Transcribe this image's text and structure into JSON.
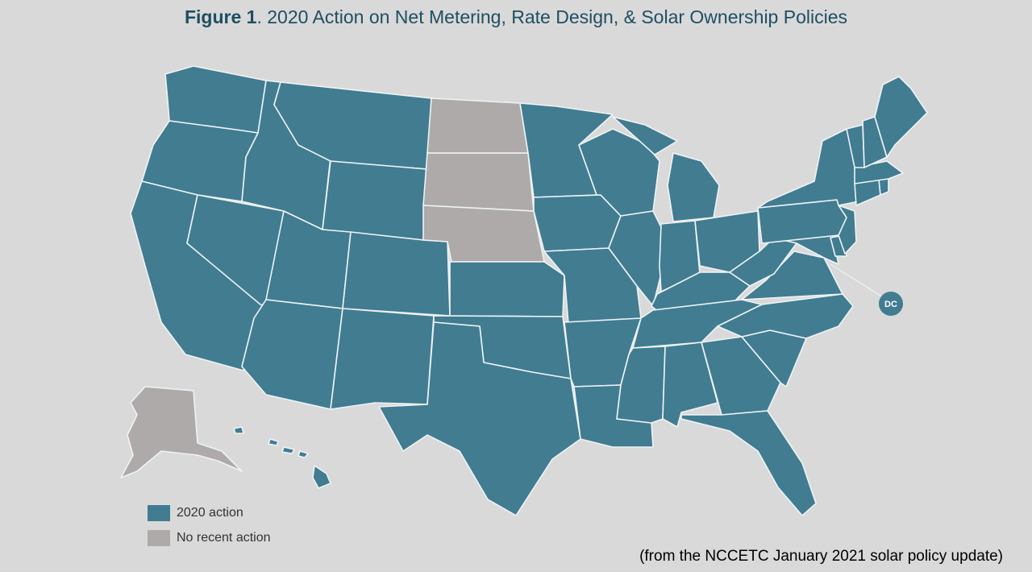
{
  "title": {
    "bold_part": "Figure 1",
    "rest": ". 2020 Action on Net Metering, Rate Design, & Solar Ownership Policies"
  },
  "colors": {
    "action_2020": "#417c91",
    "no_recent_action": "#aeaaa9",
    "background": "#d9d9d9",
    "border": "#eef3f5"
  },
  "legend": {
    "items": [
      {
        "label": "2020 action",
        "status": "action_2020"
      },
      {
        "label": "No recent action",
        "status": "no_recent_action"
      }
    ]
  },
  "dc": {
    "label": "DC",
    "status": "action_2020"
  },
  "source_note": "(from the NCCETC January 2021 solar policy update)",
  "map": {
    "states": [
      {
        "abbr": "WA",
        "status": "action_2020"
      },
      {
        "abbr": "OR",
        "status": "action_2020"
      },
      {
        "abbr": "CA",
        "status": "action_2020"
      },
      {
        "abbr": "ID",
        "status": "action_2020"
      },
      {
        "abbr": "NV",
        "status": "action_2020"
      },
      {
        "abbr": "MT",
        "status": "action_2020"
      },
      {
        "abbr": "WY",
        "status": "action_2020"
      },
      {
        "abbr": "UT",
        "status": "action_2020"
      },
      {
        "abbr": "AZ",
        "status": "action_2020"
      },
      {
        "abbr": "CO",
        "status": "action_2020"
      },
      {
        "abbr": "NM",
        "status": "action_2020"
      },
      {
        "abbr": "ND",
        "status": "no_recent_action"
      },
      {
        "abbr": "SD",
        "status": "no_recent_action"
      },
      {
        "abbr": "NE",
        "status": "no_recent_action"
      },
      {
        "abbr": "KS",
        "status": "action_2020"
      },
      {
        "abbr": "OK",
        "status": "action_2020"
      },
      {
        "abbr": "TX",
        "status": "action_2020"
      },
      {
        "abbr": "MN",
        "status": "action_2020"
      },
      {
        "abbr": "IA",
        "status": "action_2020"
      },
      {
        "abbr": "MO",
        "status": "action_2020"
      },
      {
        "abbr": "AR",
        "status": "action_2020"
      },
      {
        "abbr": "LA",
        "status": "action_2020"
      },
      {
        "abbr": "WI",
        "status": "action_2020"
      },
      {
        "abbr": "IL",
        "status": "action_2020"
      },
      {
        "abbr": "MI",
        "status": "action_2020"
      },
      {
        "abbr": "IN",
        "status": "action_2020"
      },
      {
        "abbr": "OH",
        "status": "action_2020"
      },
      {
        "abbr": "KY",
        "status": "action_2020"
      },
      {
        "abbr": "TN",
        "status": "action_2020"
      },
      {
        "abbr": "MS",
        "status": "action_2020"
      },
      {
        "abbr": "AL",
        "status": "action_2020"
      },
      {
        "abbr": "GA",
        "status": "action_2020"
      },
      {
        "abbr": "FL",
        "status": "action_2020"
      },
      {
        "abbr": "SC",
        "status": "action_2020"
      },
      {
        "abbr": "NC",
        "status": "action_2020"
      },
      {
        "abbr": "VA",
        "status": "action_2020"
      },
      {
        "abbr": "WV",
        "status": "action_2020"
      },
      {
        "abbr": "MD",
        "status": "action_2020"
      },
      {
        "abbr": "DE",
        "status": "action_2020"
      },
      {
        "abbr": "PA",
        "status": "action_2020"
      },
      {
        "abbr": "NJ",
        "status": "action_2020"
      },
      {
        "abbr": "NY",
        "status": "action_2020"
      },
      {
        "abbr": "CT",
        "status": "action_2020"
      },
      {
        "abbr": "RI",
        "status": "action_2020"
      },
      {
        "abbr": "MA",
        "status": "action_2020"
      },
      {
        "abbr": "VT",
        "status": "action_2020"
      },
      {
        "abbr": "NH",
        "status": "action_2020"
      },
      {
        "abbr": "ME",
        "status": "action_2020"
      },
      {
        "abbr": "AK",
        "status": "no_recent_action"
      },
      {
        "abbr": "HI",
        "status": "action_2020"
      }
    ]
  }
}
